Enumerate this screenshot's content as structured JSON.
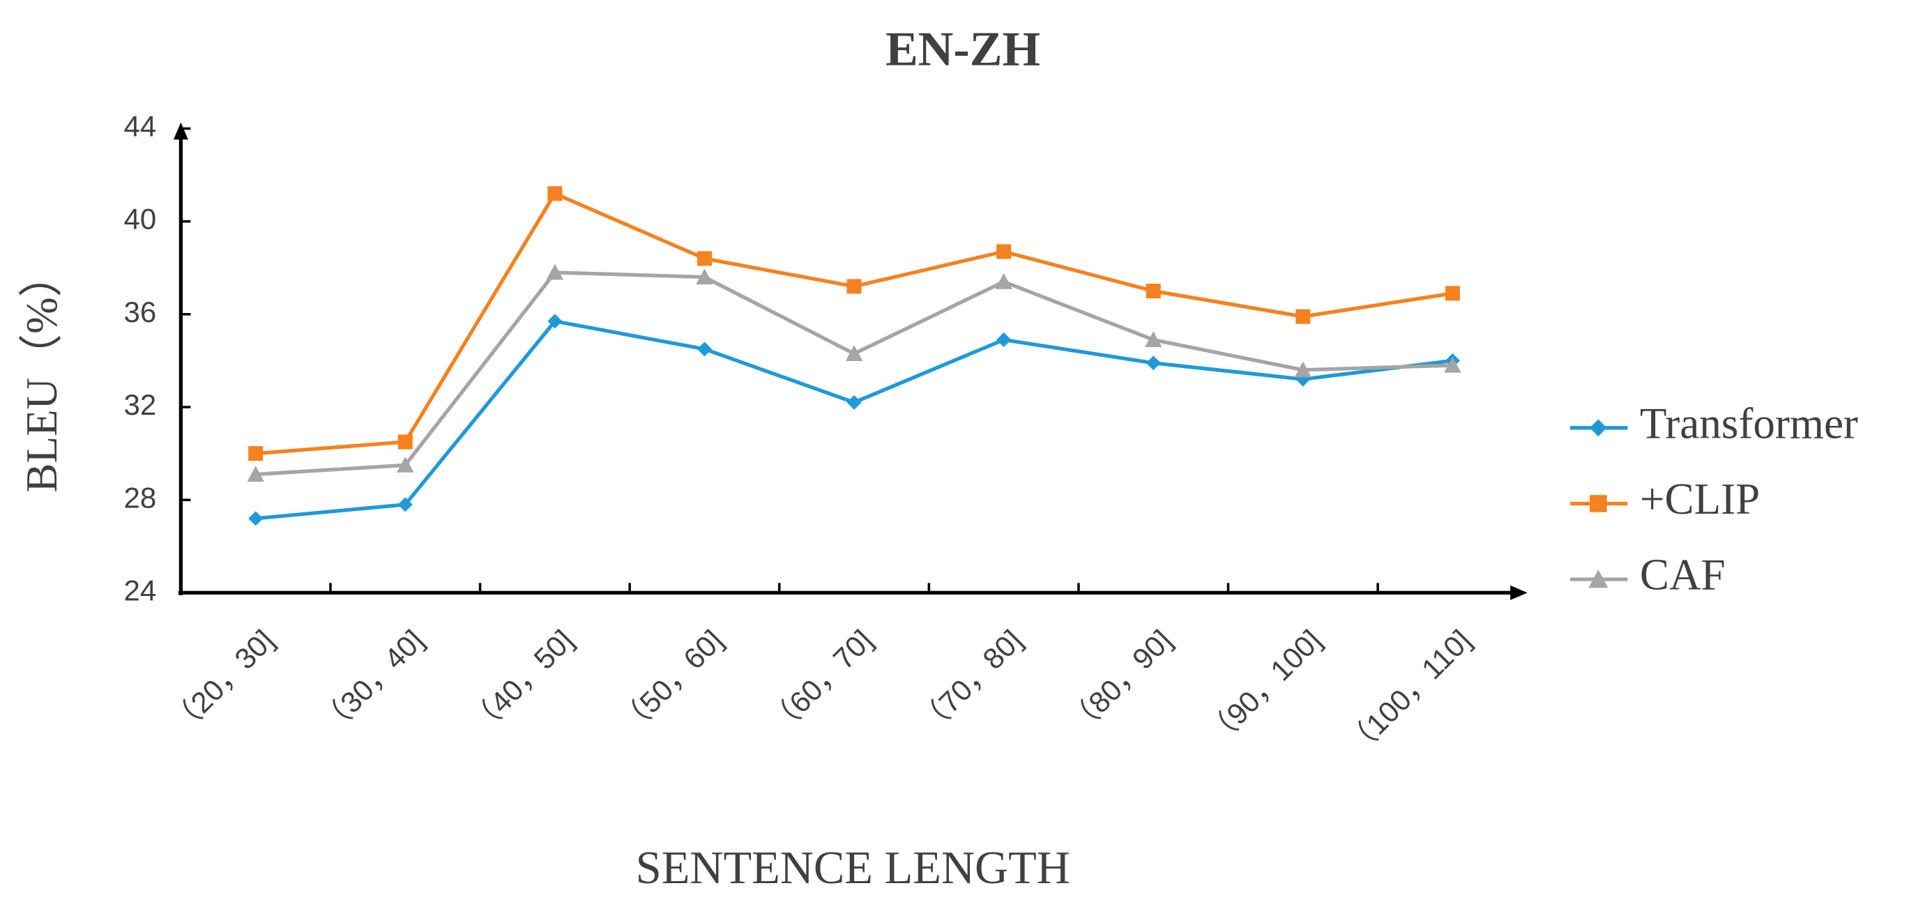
{
  "chart_data": {
    "type": "line",
    "title": "EN-ZH",
    "x_label": "SENTENCE LENGTH",
    "y_label": "BLEU（%）",
    "categories": [
      "（20，30]",
      "（30，40]",
      "（40，50]",
      "（50，60]",
      "（60，70]",
      "（70，80]",
      "（80，90]",
      "（90，100]",
      "（100，110]"
    ],
    "ylim": [
      24,
      44
    ],
    "yticks": [
      24,
      28,
      32,
      36,
      40,
      44
    ],
    "series": [
      {
        "name": "Transformer",
        "color": "#1f9ad6",
        "marker": "diamond",
        "values": [
          27.2,
          27.8,
          35.7,
          34.5,
          32.2,
          34.9,
          33.9,
          33.2,
          34.0
        ]
      },
      {
        "name": "+CLIP",
        "color": "#f5821f",
        "marker": "square",
        "values": [
          30.0,
          30.5,
          41.2,
          38.4,
          37.2,
          38.7,
          37.0,
          35.9,
          36.9
        ]
      },
      {
        "name": "CAF",
        "color": "#a5a5a5",
        "marker": "triangle",
        "values": [
          29.1,
          29.5,
          37.8,
          37.6,
          34.3,
          37.4,
          34.9,
          33.6,
          33.8
        ]
      }
    ]
  }
}
